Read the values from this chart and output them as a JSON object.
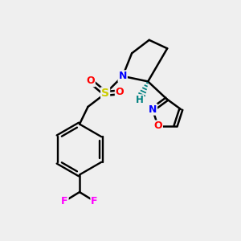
{
  "background_color": "#efefef",
  "bond_color": "#000000",
  "atom_colors": {
    "N": "#0000ff",
    "O": "#ff0000",
    "S": "#cccc00",
    "F": "#ff00ff",
    "H_stereo": "#008080",
    "C": "#000000"
  },
  "figsize": [
    3.0,
    3.0
  ],
  "dpi": 100
}
